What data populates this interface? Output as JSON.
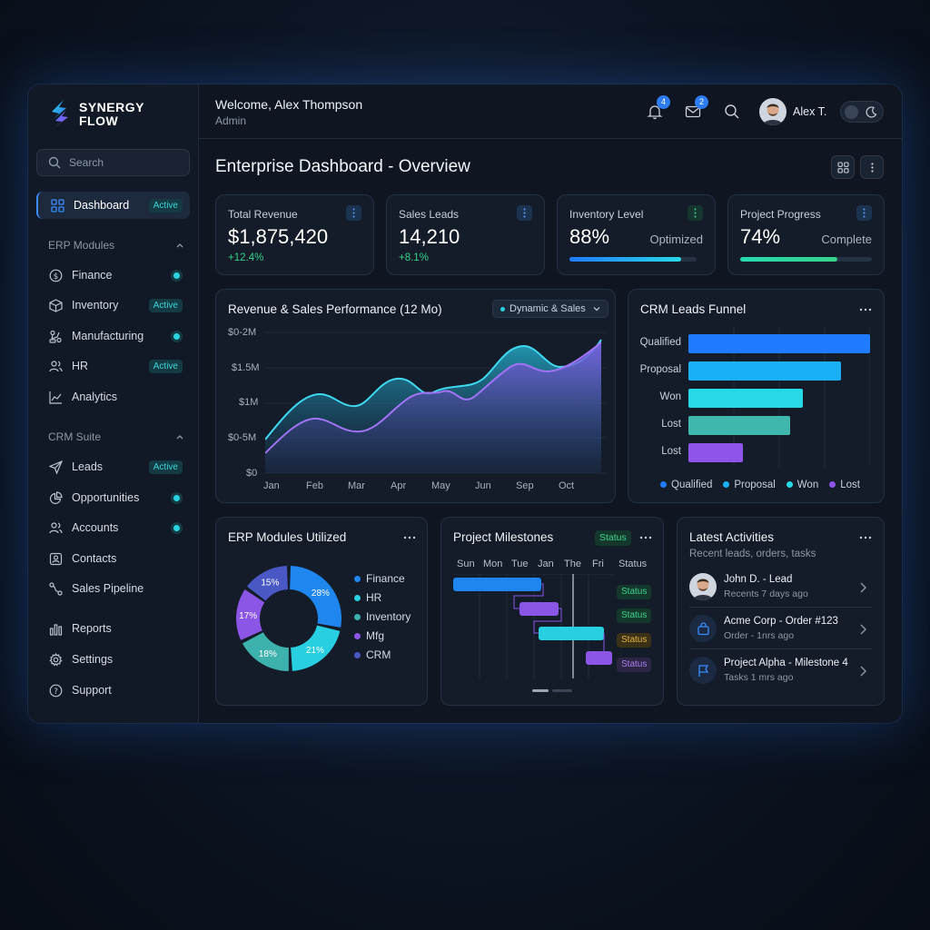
{
  "brand": {
    "line1": "SYNERGY",
    "line2": "FLOW"
  },
  "search": {
    "placeholder": "Search"
  },
  "nav": {
    "dashboard": {
      "label": "Dashboard",
      "badge": "Active"
    },
    "erp_label": "ERP Modules",
    "erp": [
      {
        "label": "Finance",
        "status": "dot"
      },
      {
        "label": "Inventory",
        "status": "Active"
      },
      {
        "label": "Manufacturing",
        "status": "dot"
      },
      {
        "label": "HR",
        "status": "Active"
      },
      {
        "label": "Analytics",
        "status": ""
      }
    ],
    "crm_label": "CRM Suite",
    "crm": [
      {
        "label": "Leads",
        "status": "Active"
      },
      {
        "label": "Opportunities",
        "status": "dot"
      },
      {
        "label": "Accounts",
        "status": "dot"
      },
      {
        "label": "Contacts",
        "status": ""
      },
      {
        "label": "Sales Pipeline",
        "status": ""
      }
    ],
    "bottom": [
      {
        "label": "Reports"
      },
      {
        "label": "Settings"
      },
      {
        "label": "Support"
      }
    ]
  },
  "header": {
    "welcome": "Welcome, Alex Thompson",
    "role": "Admin",
    "notifications_count": "4",
    "messages_count": "2",
    "username": "Alex T."
  },
  "page": {
    "title": "Enterprise Dashboard - Overview"
  },
  "kpis": [
    {
      "label": "Total Revenue",
      "value": "$1,875,420",
      "delta": "+12.4%"
    },
    {
      "label": "Sales Leads",
      "value": "14,210",
      "delta": "+8.1%"
    },
    {
      "label": "Inventory Level",
      "value": "88%",
      "side": "Optimized",
      "progress": 0.88
    },
    {
      "label": "Project Progress",
      "value": "74%",
      "side": "Complete",
      "progress": 0.74
    }
  ],
  "revenue_chart": {
    "title": "Revenue & Sales Performance (12 Mo)",
    "filter": "Dynamic & Sales",
    "y_ticks": [
      "$0-2M",
      "$1.5M",
      "$1M",
      "$0-5M",
      "$0"
    ],
    "x_ticks": [
      "Jan",
      "Feb",
      "Mar",
      "Apr",
      "May",
      "Jun",
      "Sep",
      "Oct"
    ]
  },
  "funnel": {
    "title": "CRM Leads Funnel",
    "rows": [
      {
        "label": "Qualified",
        "value": 100,
        "color": "#1f7bff"
      },
      {
        "label": "Proposal",
        "value": 84,
        "color": "#1ab0f5"
      },
      {
        "label": "Won",
        "value": 63,
        "color": "#27d9e6"
      },
      {
        "label": "Lost",
        "value": 56,
        "color": "#3fb7ad"
      },
      {
        "label": "Lost",
        "value": 30,
        "color": "#8d55e8"
      }
    ],
    "legend": [
      {
        "label": "Qualified",
        "color": "#1f7bff"
      },
      {
        "label": "Proposal",
        "color": "#1ab0f5"
      },
      {
        "label": "Won",
        "color": "#27d9e6"
      },
      {
        "label": "Lost",
        "color": "#8d55e8"
      }
    ]
  },
  "erp_modules": {
    "title": "ERP Modules Utilized",
    "segments": [
      {
        "label": "Finance",
        "pct": "28%",
        "value": 28,
        "color": "#1f86f0"
      },
      {
        "label": "HR",
        "pct": "21%",
        "value": 21,
        "color": "#27cfe0"
      },
      {
        "label": "Inventory",
        "pct": "18%",
        "value": 18,
        "color": "#3db1ab"
      },
      {
        "label": "Mfg",
        "pct": "17%",
        "value": 17,
        "color": "#8b55e6"
      },
      {
        "label": "CRM",
        "pct": "15%",
        "value": 15,
        "color": "#4a58c6"
      }
    ]
  },
  "milestones": {
    "title": "Project Milestones",
    "status_badge": "Status",
    "days": [
      "Sun",
      "Mon",
      "Tue",
      "Jan",
      "The",
      "Fri"
    ],
    "status_header": "Status",
    "statuses": [
      {
        "label": "Status",
        "bg": "#15382d",
        "fg": "#3bd38e"
      },
      {
        "label": "Status",
        "bg": "#15382d",
        "fg": "#3bd38e"
      },
      {
        "label": "Status",
        "bg": "#3a3116",
        "fg": "#e2b440"
      },
      {
        "label": "Status",
        "bg": "#2c2544",
        "fg": "#a982f0"
      }
    ]
  },
  "activities": {
    "title": "Latest Activities",
    "subtitle": "Recent leads, orders, tasks",
    "items": [
      {
        "title": "John D. - Lead",
        "sub": "Recents 7 days ago",
        "icon": "avatar"
      },
      {
        "title": "Acme Corp - Order #123",
        "sub": "Order - 1nrs ago",
        "icon": "bag-icon"
      },
      {
        "title": "Project Alpha - Milestone 4",
        "sub": "Tasks 1 mrs ago",
        "icon": "flag-icon"
      }
    ]
  }
}
